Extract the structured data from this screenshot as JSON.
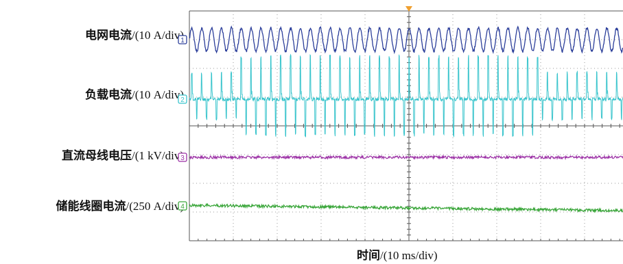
{
  "channels": [
    {
      "id": "1",
      "name": "电网电流",
      "unit": "/(10 A/div)",
      "color": "#2b3e9a"
    },
    {
      "id": "2",
      "name": "负载电流",
      "unit": "/(10 A/div)",
      "color": "#38c4cc"
    },
    {
      "id": "3",
      "name": "直流母线电压",
      "unit": "/(1 kV/div)",
      "color": "#9b2fa5"
    },
    {
      "id": "4",
      "name": "储能线圈电流",
      "unit": "/(250 A/div)",
      "color": "#3aa63a"
    }
  ],
  "x_axis": {
    "name": "时间",
    "unit": "/(10 ms/div)"
  },
  "colors": {
    "grid": "#555555",
    "trigger_marker": "#f0a030"
  }
}
